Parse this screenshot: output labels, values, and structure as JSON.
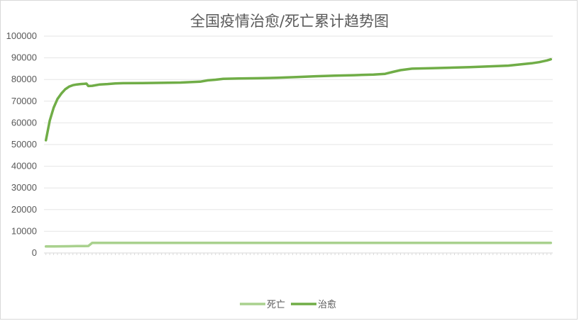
{
  "chart_data": {
    "type": "line",
    "title": "全国疫情治愈/死亡累计趋势图",
    "xlabel": "",
    "ylabel": "",
    "ylim": [
      0,
      100000
    ],
    "yticks": [
      "0",
      "10000",
      "20000",
      "30000",
      "40000",
      "50000",
      "60000",
      "70000",
      "80000",
      "90000",
      "100000"
    ],
    "grid": true,
    "legend_position": "bottom",
    "x_tick_count": 132,
    "series": [
      {
        "name": "死亡",
        "color": "#a9d18e",
        "points": [
          [
            0,
            3000
          ],
          [
            2,
            3050
          ],
          [
            4,
            3080
          ],
          [
            6,
            3120
          ],
          [
            8,
            3160
          ],
          [
            10,
            3200
          ],
          [
            11,
            3250
          ],
          [
            12,
            4630
          ],
          [
            20,
            4630
          ],
          [
            40,
            4633
          ],
          [
            60,
            4634
          ],
          [
            80,
            4634
          ],
          [
            100,
            4634
          ],
          [
            120,
            4634
          ],
          [
            131,
            4634
          ]
        ]
      },
      {
        "name": "治愈",
        "color": "#70ad47",
        "points": [
          [
            0,
            52000
          ],
          [
            1,
            61000
          ],
          [
            2,
            67000
          ],
          [
            3,
            71000
          ],
          [
            4,
            73500
          ],
          [
            5,
            75500
          ],
          [
            6,
            76700
          ],
          [
            7,
            77400
          ],
          [
            8,
            77700
          ],
          [
            9,
            77900
          ],
          [
            10,
            78000
          ],
          [
            10.5,
            78100
          ],
          [
            11,
            77000
          ],
          [
            12,
            77100
          ],
          [
            14,
            77700
          ],
          [
            16,
            77900
          ],
          [
            18,
            78200
          ],
          [
            20,
            78300
          ],
          [
            25,
            78350
          ],
          [
            30,
            78450
          ],
          [
            35,
            78600
          ],
          [
            40,
            79000
          ],
          [
            42,
            79600
          ],
          [
            44,
            79900
          ],
          [
            46,
            80300
          ],
          [
            50,
            80500
          ],
          [
            55,
            80600
          ],
          [
            60,
            80800
          ],
          [
            65,
            81100
          ],
          [
            70,
            81500
          ],
          [
            75,
            81800
          ],
          [
            80,
            82000
          ],
          [
            85,
            82300
          ],
          [
            88,
            82600
          ],
          [
            90,
            83500
          ],
          [
            92,
            84300
          ],
          [
            95,
            85000
          ],
          [
            100,
            85200
          ],
          [
            110,
            85700
          ],
          [
            120,
            86400
          ],
          [
            126,
            87500
          ],
          [
            128,
            88000
          ],
          [
            130,
            88800
          ],
          [
            131,
            89300
          ]
        ]
      }
    ]
  }
}
